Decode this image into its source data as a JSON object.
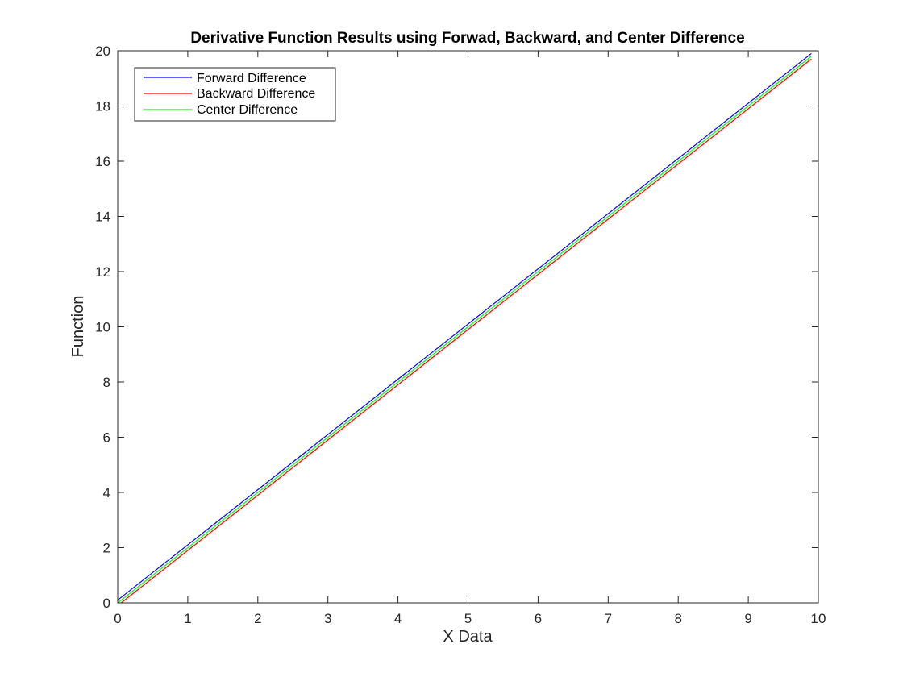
{
  "chart_data": {
    "type": "line",
    "title": "Derivative Function Results using Forwad, Backward, and Center Difference",
    "xlabel": "X Data",
    "ylabel": "Function",
    "xlim": [
      0,
      10
    ],
    "ylim": [
      0,
      20
    ],
    "xticks": [
      "0",
      "1",
      "2",
      "3",
      "4",
      "5",
      "6",
      "7",
      "8",
      "9",
      "10"
    ],
    "yticks": [
      "0",
      "2",
      "4",
      "6",
      "8",
      "10",
      "12",
      "14",
      "16",
      "18",
      "20"
    ],
    "grid": false,
    "legend_position": "top-left",
    "series": [
      {
        "name": "Forward Difference",
        "color": "#0000ff",
        "x": [
          0,
          9.9
        ],
        "y": [
          0.1,
          19.9
        ]
      },
      {
        "name": "Backward Difference",
        "color": "#ff0000",
        "x": [
          0,
          9.9
        ],
        "y": [
          -0.1,
          19.7
        ]
      },
      {
        "name": "Center Difference",
        "color": "#00ff00",
        "x": [
          0,
          9.9
        ],
        "y": [
          0,
          19.8
        ]
      }
    ]
  }
}
